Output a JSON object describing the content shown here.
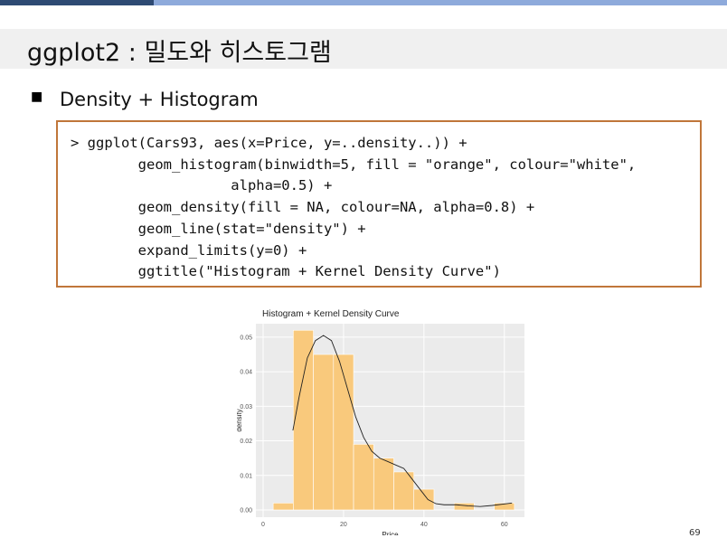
{
  "header": {
    "title": "ggplot2 : 밀도와 히스토그램"
  },
  "bullet": "Density + Histogram",
  "code": [
    "> ggplot(Cars93, aes(x=Price, y=..density..)) +",
    "        geom_histogram(binwidth=5, fill = \"orange\", colour=\"white\",",
    "                   alpha=0.5) +",
    "        geom_density(fill = NA, colour=NA, alpha=0.8) +",
    "        geom_line(stat=\"density\") +",
    "        expand_limits(y=0) +",
    "        ggtitle(\"Histogram + Kernel Density Curve\")"
  ],
  "page_number": "69",
  "chart_data": {
    "type": "histogram",
    "title": "Histogram + Kernel Density Curve",
    "x_label": "Price",
    "y_label": "density",
    "bins": [
      2.5,
      7.5,
      12.5,
      17.5,
      22.5,
      27.5,
      32.5,
      37.5,
      42.5,
      47.5,
      52.5,
      57.5,
      62.5
    ],
    "values": [
      0.002,
      0.052,
      0.045,
      0.045,
      0.019,
      0.015,
      0.011,
      0.006,
      0,
      0.002,
      0,
      0.002
    ],
    "color": "#f9c97c",
    "curve": {
      "x": [
        7.4,
        9,
        11,
        13,
        15,
        17,
        19,
        21,
        23,
        25,
        27,
        29,
        31,
        33,
        35,
        37,
        39,
        41,
        43,
        45,
        48,
        51,
        54,
        57,
        61.9
      ],
      "y": [
        0.023,
        0.033,
        0.044,
        0.049,
        0.0505,
        0.049,
        0.043,
        0.035,
        0.027,
        0.021,
        0.017,
        0.015,
        0.014,
        0.013,
        0.012,
        0.009,
        0.006,
        0.003,
        0.0018,
        0.0015,
        0.0015,
        0.0012,
        0.001,
        0.0013,
        0.002
      ],
      "color": "#222222"
    },
    "xlim": [
      -1.8,
      65
    ],
    "ylim": [
      -0.0021,
      0.0539
    ],
    "xticks": [
      0,
      20,
      40,
      60
    ],
    "yticks": [
      {
        "value": 0,
        "label": "0.00"
      },
      0.01,
      0.02,
      0.03,
      0.04,
      0.05
    ],
    "grid": true
  }
}
